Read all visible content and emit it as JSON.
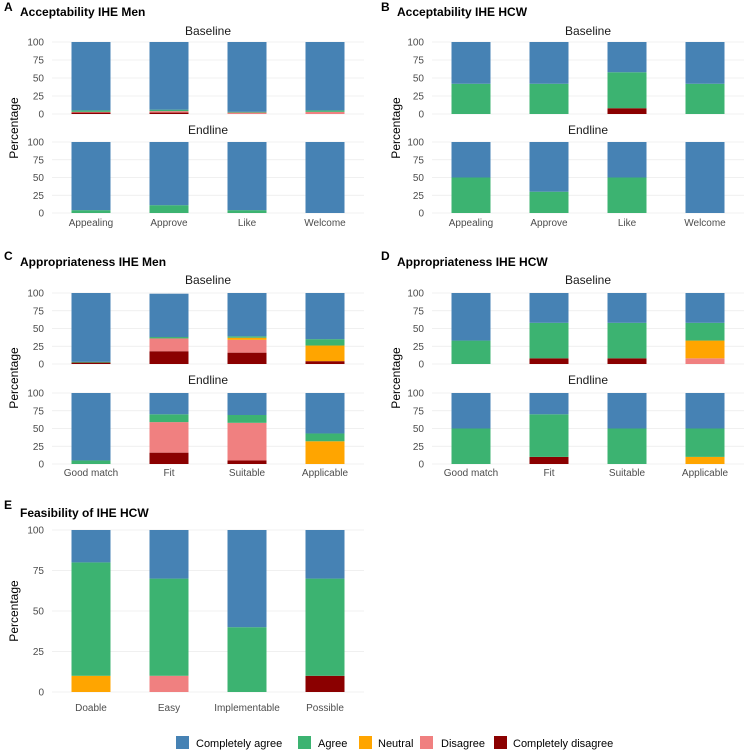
{
  "legend": [
    {
      "key": "completely_agree",
      "label": "Completely agree",
      "color": "#4682B4"
    },
    {
      "key": "agree",
      "label": "Agree",
      "color": "#3CB371"
    },
    {
      "key": "neutral",
      "label": "Neutral",
      "color": "#FFA500"
    },
    {
      "key": "disagree",
      "label": "Disagree",
      "color": "#F08080"
    },
    {
      "key": "completely_disagree",
      "label": "Completely disagree",
      "color": "#8B0000"
    }
  ],
  "chart_data": [
    {
      "id": "A",
      "letter": "A",
      "title": "Acceptability IHE Men",
      "type": "bar",
      "stacked": true,
      "ylabel": "Percentage",
      "ylim": [
        0,
        100
      ],
      "yticks": [
        0,
        25,
        50,
        75,
        100
      ],
      "categories": [
        "Appealing",
        "Approve",
        "Like",
        "Welcome"
      ],
      "facets": [
        {
          "title": "Baseline",
          "series": [
            {
              "name": "Completely disagree",
              "values": [
                2,
                2,
                0,
                0
              ]
            },
            {
              "name": "Disagree",
              "values": [
                1,
                2,
                2,
                3
              ]
            },
            {
              "name": "Neutral",
              "values": [
                0,
                0,
                0,
                0
              ]
            },
            {
              "name": "Agree",
              "values": [
                2,
                2,
                1,
                2
              ]
            },
            {
              "name": "Completely agree",
              "values": [
                95,
                94,
                97,
                95
              ]
            }
          ]
        },
        {
          "title": "Endline",
          "series": [
            {
              "name": "Completely disagree",
              "values": [
                0,
                0,
                0,
                0
              ]
            },
            {
              "name": "Disagree",
              "values": [
                0,
                0,
                0,
                0
              ]
            },
            {
              "name": "Neutral",
              "values": [
                0,
                0,
                0,
                0
              ]
            },
            {
              "name": "Agree",
              "values": [
                4,
                11,
                4,
                0
              ]
            },
            {
              "name": "Completely agree",
              "values": [
                96,
                89,
                96,
                100
              ]
            }
          ]
        }
      ]
    },
    {
      "id": "B",
      "letter": "B",
      "title": "Acceptability IHE HCW",
      "type": "bar",
      "stacked": true,
      "ylabel": "Percentage",
      "ylim": [
        0,
        100
      ],
      "yticks": [
        0,
        25,
        50,
        75,
        100
      ],
      "categories": [
        "Appealing",
        "Approve",
        "Like",
        "Welcome"
      ],
      "facets": [
        {
          "title": "Baseline",
          "series": [
            {
              "name": "Completely disagree",
              "values": [
                0,
                0,
                8,
                0
              ]
            },
            {
              "name": "Disagree",
              "values": [
                0,
                0,
                0,
                0
              ]
            },
            {
              "name": "Neutral",
              "values": [
                0,
                0,
                0,
                0
              ]
            },
            {
              "name": "Agree",
              "values": [
                42,
                42,
                50,
                42
              ]
            },
            {
              "name": "Completely agree",
              "values": [
                58,
                58,
                42,
                58
              ]
            }
          ]
        },
        {
          "title": "Endline",
          "series": [
            {
              "name": "Completely disagree",
              "values": [
                0,
                0,
                0,
                0
              ]
            },
            {
              "name": "Disagree",
              "values": [
                0,
                0,
                0,
                0
              ]
            },
            {
              "name": "Neutral",
              "values": [
                0,
                0,
                0,
                0
              ]
            },
            {
              "name": "Agree",
              "values": [
                50,
                30,
                50,
                0
              ]
            },
            {
              "name": "Completely agree",
              "values": [
                50,
                70,
                50,
                100
              ]
            }
          ]
        }
      ]
    },
    {
      "id": "C",
      "letter": "C",
      "title": "Appropriateness IHE Men",
      "type": "bar",
      "stacked": true,
      "ylabel": "Percentage",
      "ylim": [
        0,
        100
      ],
      "yticks": [
        0,
        25,
        50,
        75,
        100
      ],
      "categories": [
        "Good match",
        "Fit",
        "Suitable",
        "Applicable"
      ],
      "facets": [
        {
          "title": "Baseline",
          "series": [
            {
              "name": "Completely disagree",
              "values": [
                2,
                18,
                16,
                4
              ]
            },
            {
              "name": "Disagree",
              "values": [
                0,
                18,
                18,
                0
              ]
            },
            {
              "name": "Neutral",
              "values": [
                0,
                0,
                3,
                22
              ]
            },
            {
              "name": "Agree",
              "values": [
                1,
                2,
                2,
                9
              ]
            },
            {
              "name": "Completely agree",
              "values": [
                97,
                61,
                61,
                65
              ]
            }
          ]
        },
        {
          "title": "Endline",
          "series": [
            {
              "name": "Completely disagree",
              "values": [
                0,
                16,
                5,
                0
              ]
            },
            {
              "name": "Disagree",
              "values": [
                0,
                43,
                53,
                0
              ]
            },
            {
              "name": "Neutral",
              "values": [
                0,
                0,
                0,
                32
              ]
            },
            {
              "name": "Agree",
              "values": [
                5,
                11,
                11,
                11
              ]
            },
            {
              "name": "Completely agree",
              "values": [
                95,
                30,
                31,
                57
              ]
            }
          ]
        }
      ]
    },
    {
      "id": "D",
      "letter": "D",
      "title": "Appropriateness IHE HCW",
      "type": "bar",
      "stacked": true,
      "ylabel": "Percentage",
      "ylim": [
        0,
        100
      ],
      "yticks": [
        0,
        25,
        50,
        75,
        100
      ],
      "categories": [
        "Good match",
        "Fit",
        "Suitable",
        "Applicable"
      ],
      "facets": [
        {
          "title": "Baseline",
          "series": [
            {
              "name": "Completely disagree",
              "values": [
                0,
                8,
                8,
                0
              ]
            },
            {
              "name": "Disagree",
              "values": [
                0,
                0,
                0,
                8
              ]
            },
            {
              "name": "Neutral",
              "values": [
                0,
                0,
                0,
                25
              ]
            },
            {
              "name": "Agree",
              "values": [
                33,
                50,
                50,
                25
              ]
            },
            {
              "name": "Completely agree",
              "values": [
                67,
                42,
                42,
                42
              ]
            }
          ]
        },
        {
          "title": "Endline",
          "series": [
            {
              "name": "Completely disagree",
              "values": [
                0,
                10,
                0,
                0
              ]
            },
            {
              "name": "Disagree",
              "values": [
                0,
                0,
                0,
                0
              ]
            },
            {
              "name": "Neutral",
              "values": [
                0,
                0,
                0,
                10
              ]
            },
            {
              "name": "Agree",
              "values": [
                50,
                60,
                50,
                40
              ]
            },
            {
              "name": "Completely agree",
              "values": [
                50,
                30,
                50,
                50
              ]
            }
          ]
        }
      ]
    },
    {
      "id": "E",
      "letter": "E",
      "title": "Feasibility of IHE  HCW",
      "type": "bar",
      "stacked": true,
      "ylabel": "Percentage",
      "ylim": [
        0,
        100
      ],
      "yticks": [
        0,
        25,
        50,
        75,
        100
      ],
      "categories": [
        "Doable",
        "Easy",
        "Implementable",
        "Possible"
      ],
      "facets": [
        {
          "title": "",
          "series": [
            {
              "name": "Completely disagree",
              "values": [
                0,
                0,
                0,
                10
              ]
            },
            {
              "name": "Disagree",
              "values": [
                0,
                10,
                0,
                0
              ]
            },
            {
              "name": "Neutral",
              "values": [
                10,
                0,
                0,
                0
              ]
            },
            {
              "name": "Agree",
              "values": [
                70,
                60,
                40,
                60
              ]
            },
            {
              "name": "Completely agree",
              "values": [
                20,
                30,
                60,
                30
              ]
            }
          ]
        }
      ]
    }
  ]
}
